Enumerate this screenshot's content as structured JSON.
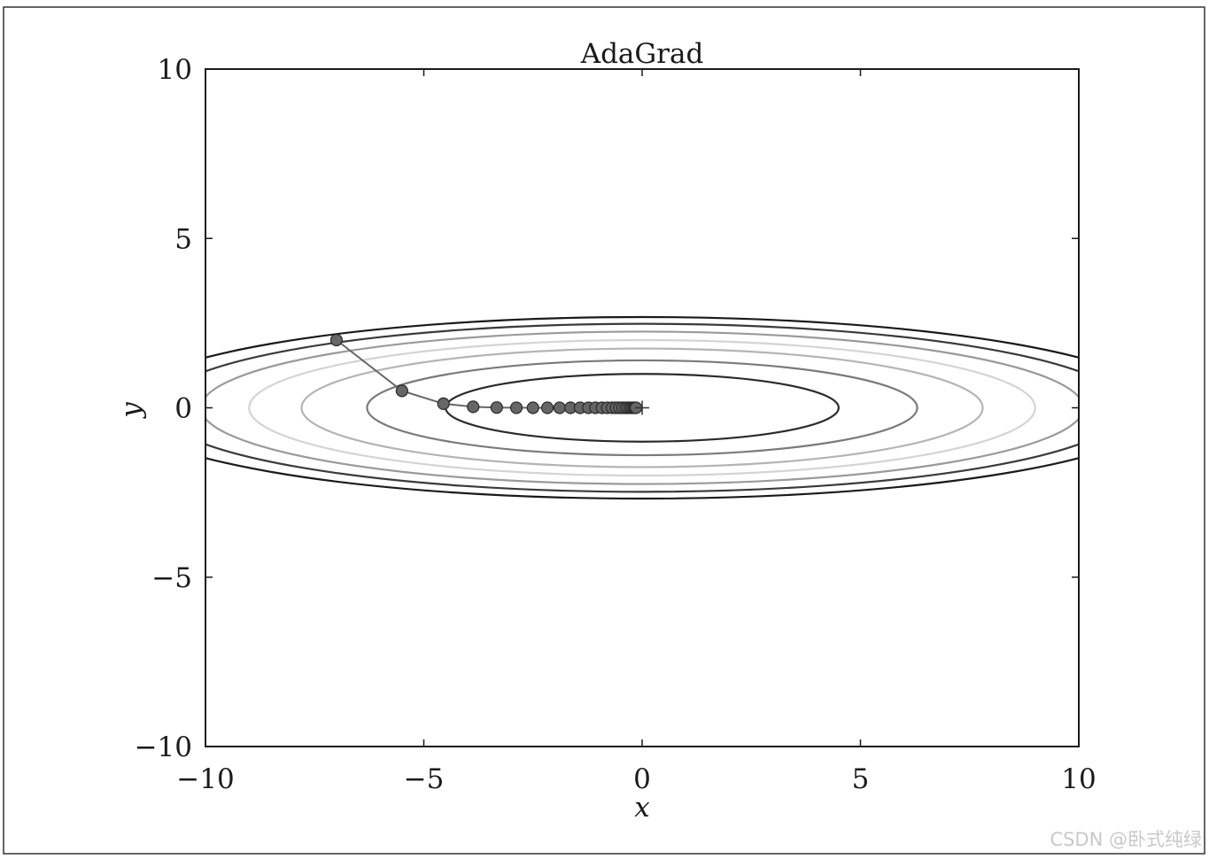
{
  "chart_data": {
    "type": "line",
    "title": "AdaGrad",
    "xlabel": "x",
    "ylabel": "y",
    "xlim": [
      -10,
      10
    ],
    "ylim": [
      -10,
      10
    ],
    "xticks": [
      {
        "value": -10,
        "label": "−10"
      },
      {
        "value": -5,
        "label": "−5"
      },
      {
        "value": 0,
        "label": "0"
      },
      {
        "value": 5,
        "label": "5"
      },
      {
        "value": 10,
        "label": "10"
      }
    ],
    "yticks": [
      {
        "value": -10,
        "label": "−10"
      },
      {
        "value": -5,
        "label": "−5"
      },
      {
        "value": 0,
        "label": "0"
      },
      {
        "value": 5,
        "label": "5"
      },
      {
        "value": 10,
        "label": "10"
      }
    ],
    "grid": false,
    "contours": {
      "function": "x^2/20 + y^2",
      "ellipses": [
        {
          "a": 4.5,
          "b": 1.0,
          "color": "#2a2a2a"
        },
        {
          "a": 6.3,
          "b": 1.4,
          "color": "#7a7a7a"
        },
        {
          "a": 7.8,
          "b": 1.75,
          "color": "#b4b4b4"
        },
        {
          "a": 9.0,
          "b": 2.0,
          "color": "#d4d4d4"
        },
        {
          "a": 10.1,
          "b": 2.25,
          "color": "#9a9a9a"
        },
        {
          "a": 11.1,
          "b": 2.48,
          "color": "#3a3a3a"
        },
        {
          "a": 12.0,
          "b": 2.68,
          "color": "#1a1a1a"
        }
      ]
    },
    "path": {
      "color": "#666666",
      "x": [
        -7.0,
        -5.5,
        -4.55,
        -3.87,
        -3.33,
        -2.88,
        -2.5,
        -2.17,
        -1.89,
        -1.64,
        -1.42,
        -1.23,
        -1.07,
        -0.92,
        -0.8,
        -0.69,
        -0.6,
        -0.52,
        -0.45,
        -0.38,
        -0.33,
        -0.28,
        -0.24,
        -0.2,
        -0.17,
        -0.14
      ],
      "y": [
        2.0,
        0.5,
        0.12,
        0.03,
        0.008,
        0.002,
        0.0,
        0.0,
        0.0,
        0.0,
        0.0,
        0.0,
        0.0,
        0.0,
        0.0,
        0.0,
        0.0,
        0.0,
        0.0,
        0.0,
        0.0,
        0.0,
        0.0,
        0.0,
        0.0,
        0.0
      ]
    },
    "minimum_marker": {
      "x": 0,
      "y": 0,
      "symbol": "+"
    }
  },
  "watermark": "CSDN @卧式纯绿"
}
